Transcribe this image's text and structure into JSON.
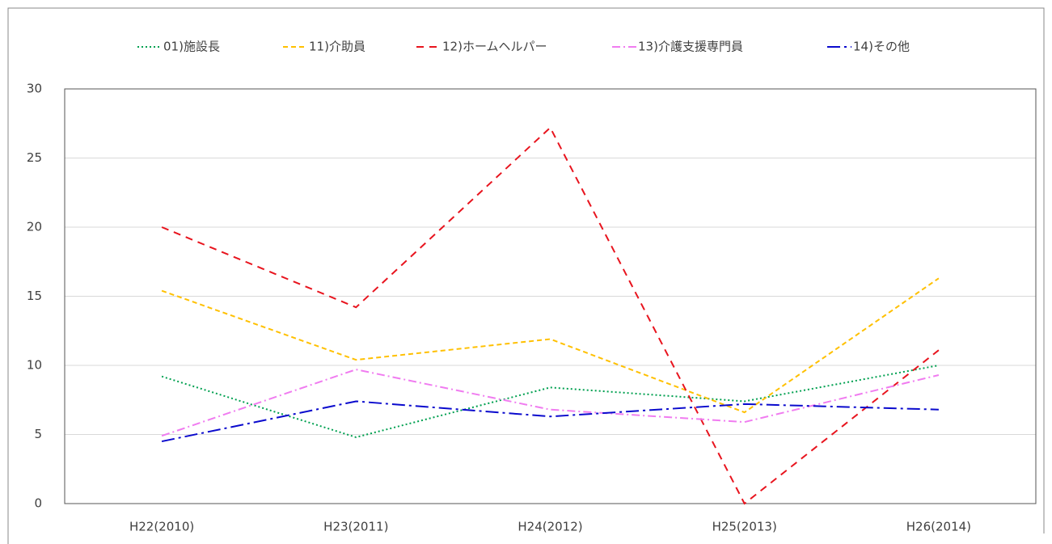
{
  "chart_data": {
    "type": "line",
    "categories": [
      "H22(2010)",
      "H23(2011)",
      "H24(2012)",
      "H25(2013)",
      "H26(2014)"
    ],
    "series": [
      {
        "name": "01)施設長",
        "color": "#00a050",
        "dash": "2 3",
        "values": [
          9.2,
          4.8,
          8.4,
          7.4,
          10.0
        ]
      },
      {
        "name": "11)介助員",
        "color": "#ffc000",
        "dash": "6 4",
        "values": [
          15.4,
          10.4,
          11.9,
          6.6,
          16.3
        ]
      },
      {
        "name": "12)ホームヘルパー",
        "color": "#e8141e",
        "dash": "9 7",
        "values": [
          20.0,
          14.2,
          27.2,
          0,
          11.1
        ]
      },
      {
        "name": "13)介護支援専門員",
        "color": "#f07cf0",
        "dash": "10 4 2 4",
        "values": [
          4.9,
          9.7,
          6.8,
          5.9,
          9.3
        ]
      },
      {
        "name": "14)その他",
        "color": "#0a0acd",
        "dash": "16 5 3 5",
        "values": [
          4.5,
          7.4,
          6.3,
          7.2,
          6.8
        ]
      }
    ],
    "ylim": [
      0,
      30
    ],
    "yticks": [
      0,
      5,
      10,
      15,
      20,
      25,
      30
    ],
    "grid": true,
    "legend": "top"
  }
}
